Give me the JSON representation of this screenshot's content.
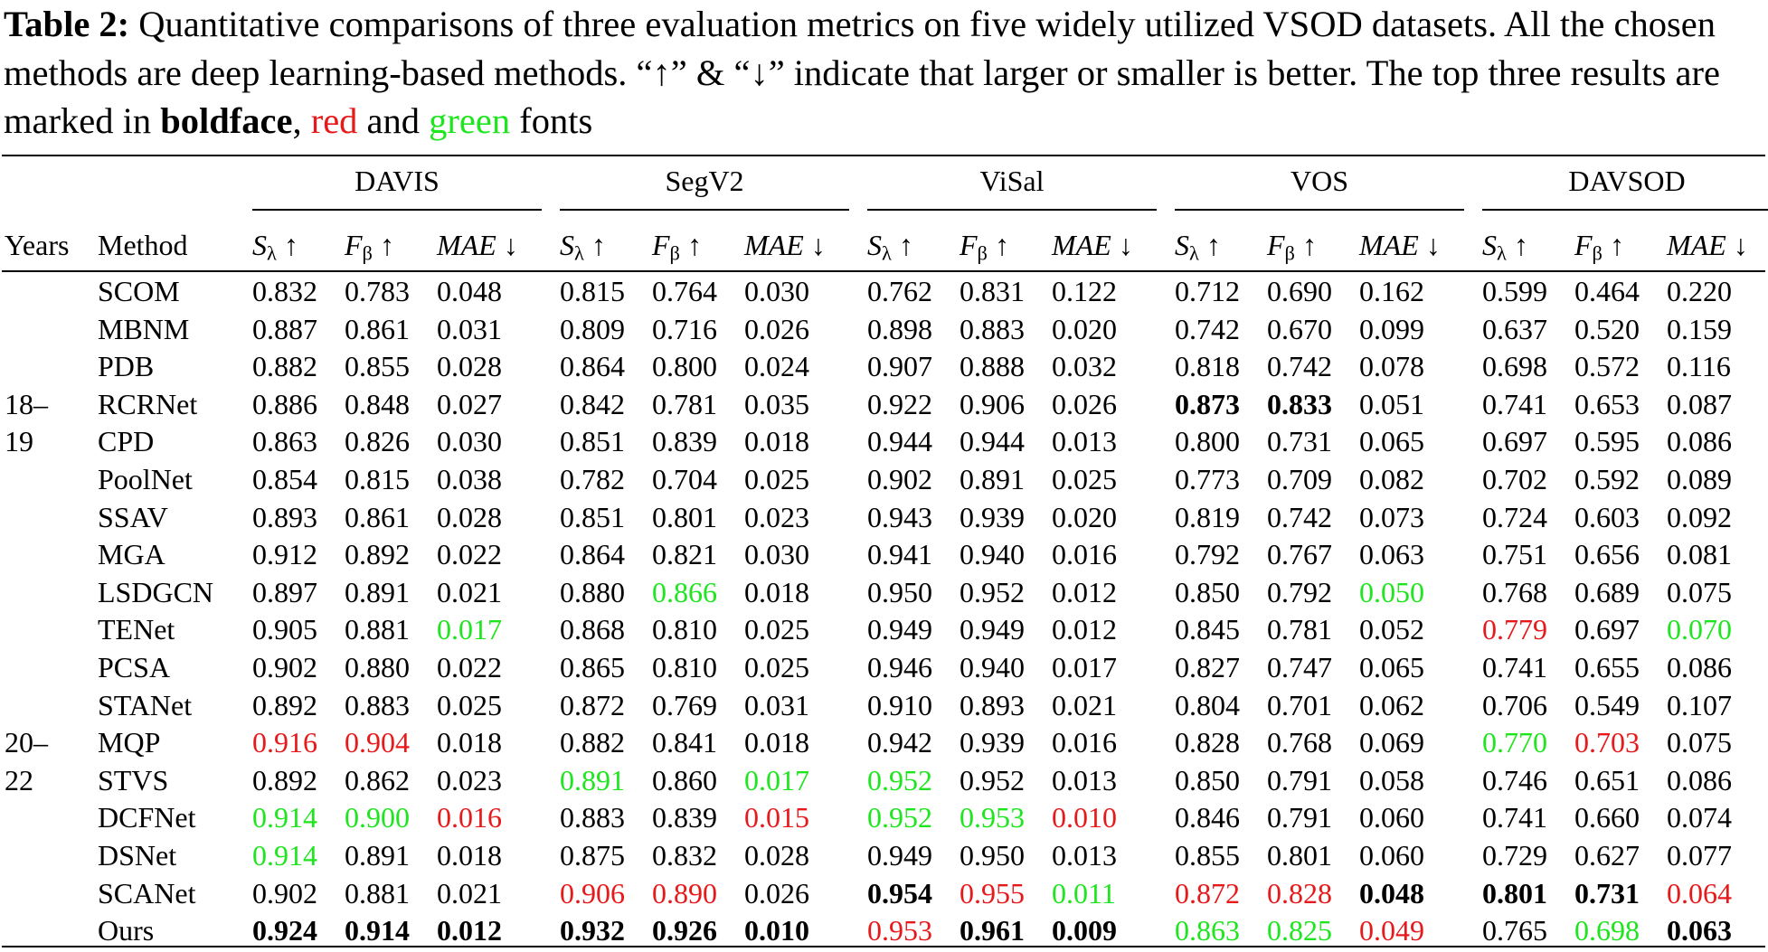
{
  "caption": [
    {
      "text": "Table 2:",
      "style": "bold"
    },
    {
      "text": " Quantitative comparisons of three evaluation metrics on five widely utilized VSOD datasets. All the chosen methods are deep learning-based methods. “↑” & “↓” indicate that larger or smaller is better. The top three results are marked in "
    },
    {
      "text": "boldface",
      "style": "bold"
    },
    {
      "text": ", "
    },
    {
      "text": "red",
      "style": "red"
    },
    {
      "text": " and "
    },
    {
      "text": "green",
      "style": "green"
    },
    {
      "text": " fonts"
    }
  ],
  "table": {
    "years_header": "Years",
    "method_header": "Method",
    "datasets": [
      "DAVIS",
      "SegV2",
      "ViSal",
      "VOS",
      "DAVSOD"
    ],
    "metrics": [
      {
        "symbol": "S",
        "sub": "λ",
        "arrow": "↑"
      },
      {
        "symbol": "F",
        "sub": "β",
        "arrow": "↑"
      },
      {
        "symbol": "MAE",
        "arrow": "↓"
      }
    ],
    "rows": [
      {
        "method": "SCOM",
        "cells": [
          "0.832",
          "0.783",
          "0.048",
          "0.815",
          "0.764",
          "0.030",
          "0.762",
          "0.831",
          "0.122",
          "0.712",
          "0.690",
          "0.162",
          "0.599",
          "0.464",
          "0.220"
        ]
      },
      {
        "method": "MBNM",
        "cells": [
          "0.887",
          "0.861",
          "0.031",
          "0.809",
          "0.716",
          "0.026",
          "0.898",
          "0.883",
          "0.020",
          "0.742",
          "0.670",
          "0.099",
          "0.637",
          "0.520",
          "0.159"
        ]
      },
      {
        "method": "PDB",
        "cells": [
          "0.882",
          "0.855",
          "0.028",
          "0.864",
          "0.800",
          "0.024",
          "0.907",
          "0.888",
          "0.032",
          "0.818",
          "0.742",
          "0.078",
          "0.698",
          "0.572",
          "0.116"
        ]
      },
      {
        "year": "18–",
        "method": "RCRNet",
        "cells": [
          "0.886",
          "0.848",
          "0.027",
          "0.842",
          "0.781",
          "0.035",
          "0.922",
          "0.906",
          "0.026",
          {
            "text": "0.873",
            "style": "bold"
          },
          {
            "text": "0.833",
            "style": "bold"
          },
          "0.051",
          "0.741",
          "0.653",
          "0.087"
        ]
      },
      {
        "year": "19",
        "method": "CPD",
        "cells": [
          "0.863",
          "0.826",
          "0.030",
          "0.851",
          "0.839",
          "0.018",
          "0.944",
          "0.944",
          "0.013",
          "0.800",
          "0.731",
          "0.065",
          "0.697",
          "0.595",
          "0.086"
        ]
      },
      {
        "method": "PoolNet",
        "cells": [
          "0.854",
          "0.815",
          "0.038",
          "0.782",
          "0.704",
          "0.025",
          "0.902",
          "0.891",
          "0.025",
          "0.773",
          "0.709",
          "0.082",
          "0.702",
          "0.592",
          "0.089"
        ]
      },
      {
        "method": "SSAV",
        "cells": [
          "0.893",
          "0.861",
          "0.028",
          "0.851",
          "0.801",
          "0.023",
          "0.943",
          "0.939",
          "0.020",
          "0.819",
          "0.742",
          "0.073",
          "0.724",
          "0.603",
          "0.092"
        ]
      },
      {
        "method": "MGA",
        "cells": [
          "0.912",
          "0.892",
          "0.022",
          "0.864",
          "0.821",
          "0.030",
          "0.941",
          "0.940",
          "0.016",
          "0.792",
          "0.767",
          "0.063",
          "0.751",
          "0.656",
          "0.081"
        ]
      },
      {
        "method": "LSDGCN",
        "cells": [
          "0.897",
          "0.891",
          "0.021",
          "0.880",
          {
            "text": "0.866",
            "style": "green"
          },
          "0.018",
          "0.950",
          "0.952",
          "0.012",
          "0.850",
          "0.792",
          {
            "text": "0.050",
            "style": "green"
          },
          "0.768",
          "0.689",
          "0.075"
        ]
      },
      {
        "method": "TENet",
        "cells": [
          "0.905",
          "0.881",
          {
            "text": "0.017",
            "style": "green"
          },
          "0.868",
          "0.810",
          "0.025",
          "0.949",
          "0.949",
          "0.012",
          "0.845",
          "0.781",
          "0.052",
          {
            "text": "0.779",
            "style": "red"
          },
          "0.697",
          {
            "text": "0.070",
            "style": "green"
          }
        ]
      },
      {
        "method": "PCSA",
        "cells": [
          "0.902",
          "0.880",
          "0.022",
          "0.865",
          "0.810",
          "0.025",
          "0.946",
          "0.940",
          "0.017",
          "0.827",
          "0.747",
          "0.065",
          "0.741",
          "0.655",
          "0.086"
        ]
      },
      {
        "method": "STANet",
        "cells": [
          "0.892",
          "0.883",
          "0.025",
          "0.872",
          "0.769",
          "0.031",
          "0.910",
          "0.893",
          "0.021",
          "0.804",
          "0.701",
          "0.062",
          "0.706",
          "0.549",
          "0.107"
        ]
      },
      {
        "year": "20–",
        "method": "MQP",
        "cells": [
          {
            "text": "0.916",
            "style": "red"
          },
          {
            "text": "0.904",
            "style": "red"
          },
          "0.018",
          "0.882",
          "0.841",
          "0.018",
          "0.942",
          "0.939",
          "0.016",
          "0.828",
          "0.768",
          "0.069",
          {
            "text": "0.770",
            "style": "green"
          },
          {
            "text": "0.703",
            "style": "red"
          },
          "0.075"
        ]
      },
      {
        "year": "22",
        "method": "STVS",
        "cells": [
          "0.892",
          "0.862",
          "0.023",
          {
            "text": "0.891",
            "style": "green"
          },
          "0.860",
          {
            "text": "0.017",
            "style": "green"
          },
          {
            "text": "0.952",
            "style": "green"
          },
          "0.952",
          "0.013",
          "0.850",
          "0.791",
          "0.058",
          "0.746",
          "0.651",
          "0.086"
        ]
      },
      {
        "method": "DCFNet",
        "cells": [
          {
            "text": "0.914",
            "style": "green"
          },
          {
            "text": "0.900",
            "style": "green"
          },
          {
            "text": "0.016",
            "style": "red"
          },
          "0.883",
          "0.839",
          {
            "text": "0.015",
            "style": "red"
          },
          {
            "text": "0.952",
            "style": "green"
          },
          {
            "text": "0.953",
            "style": "green"
          },
          {
            "text": "0.010",
            "style": "red"
          },
          "0.846",
          "0.791",
          "0.060",
          "0.741",
          "0.660",
          "0.074"
        ]
      },
      {
        "method": "DSNet",
        "cells": [
          {
            "text": "0.914",
            "style": "green"
          },
          "0.891",
          "0.018",
          "0.875",
          "0.832",
          "0.028",
          "0.949",
          "0.950",
          "0.013",
          "0.855",
          "0.801",
          "0.060",
          "0.729",
          "0.627",
          "0.077"
        ]
      },
      {
        "method": "SCANet",
        "cells": [
          "0.902",
          "0.881",
          "0.021",
          {
            "text": "0.906",
            "style": "red"
          },
          {
            "text": "0.890",
            "style": "red"
          },
          "0.026",
          {
            "text": "0.954",
            "style": "bold"
          },
          {
            "text": "0.955",
            "style": "red"
          },
          {
            "text": "0.011",
            "style": "green"
          },
          {
            "text": "0.872",
            "style": "red"
          },
          {
            "text": "0.828",
            "style": "red"
          },
          {
            "text": "0.048",
            "style": "bold"
          },
          {
            "text": "0.801",
            "style": "bold"
          },
          {
            "text": "0.731",
            "style": "bold"
          },
          {
            "text": "0.064",
            "style": "red"
          }
        ]
      },
      {
        "method": "Ours",
        "cells": [
          {
            "text": "0.924",
            "style": "bold"
          },
          {
            "text": "0.914",
            "style": "bold"
          },
          {
            "text": "0.012",
            "style": "bold"
          },
          {
            "text": "0.932",
            "style": "bold"
          },
          {
            "text": "0.926",
            "style": "bold"
          },
          {
            "text": "0.010",
            "style": "bold"
          },
          {
            "text": "0.953",
            "style": "red"
          },
          {
            "text": "0.961",
            "style": "bold"
          },
          {
            "text": "0.009",
            "style": "bold"
          },
          {
            "text": "0.863",
            "style": "green"
          },
          {
            "text": "0.825",
            "style": "green"
          },
          {
            "text": "0.049",
            "style": "red"
          },
          "0.765",
          {
            "text": "0.698",
            "style": "green"
          },
          {
            "text": "0.063",
            "style": "bold"
          }
        ]
      }
    ]
  }
}
